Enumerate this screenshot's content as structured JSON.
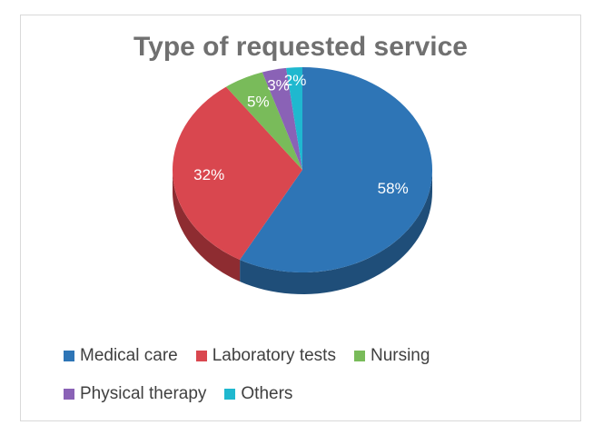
{
  "chart_data": {
    "type": "pie",
    "title": "Type of requested service",
    "categories": [
      "Medical care",
      "Laboratory tests",
      "Nursing",
      "Physical therapy",
      "Others"
    ],
    "values": [
      58,
      32,
      5,
      3,
      2
    ],
    "data_labels": [
      "58%",
      "32%",
      "5%",
      "3%",
      "2%"
    ],
    "colors": [
      "#2e75b6",
      "#d9474f",
      "#79bb5a",
      "#8a62b6",
      "#1fb8cf"
    ],
    "side_colors": [
      "#1f4e79",
      "#8e2c31",
      "#4f7c3a",
      "#5b3f78",
      "#14788a"
    ],
    "legend_position": "bottom",
    "style": "3d"
  }
}
